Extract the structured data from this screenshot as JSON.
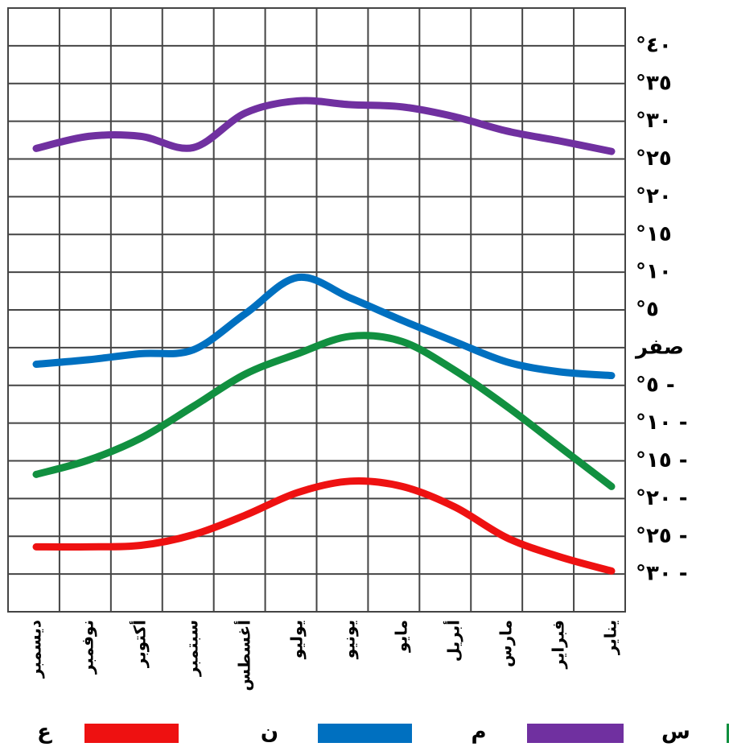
{
  "chart_data": {
    "type": "line",
    "categories": [
      "يناير",
      "فبراير",
      "مارس",
      "أبريل",
      "مايو",
      "يونيو",
      "يوليو",
      "أغسطس",
      "سبتمبر",
      "أكتوبر",
      "نوفمبر",
      "ديسمبر"
    ],
    "series": [
      {
        "name": "م",
        "color": "#7030a0",
        "values": [
          26,
          27.4,
          28.7,
          30.6,
          31.9,
          32.2,
          32.7,
          31.1,
          26.5,
          28,
          28,
          26.4
        ]
      },
      {
        "name": "ن",
        "color": "#0070c0",
        "values": [
          -3.7,
          -3.2,
          -1.9,
          0.8,
          3.6,
          6.6,
          9.3,
          4.5,
          -0.3,
          -0.8,
          -1.6,
          -2.2
        ]
      },
      {
        "name": "س",
        "color": "#119040",
        "values": [
          -18.4,
          -13.1,
          -7.8,
          -3,
          0.8,
          1.5,
          -0.8,
          -3.5,
          -7.8,
          -12,
          -14.9,
          -16.8
        ]
      },
      {
        "name": "ع",
        "color": "#ee1111",
        "values": [
          -29.6,
          -27.7,
          -25.2,
          -21.1,
          -18.4,
          -17.7,
          -19.2,
          -22.2,
          -24.8,
          -26.2,
          -26.4,
          -26.4
        ]
      }
    ],
    "ylim": [
      -35,
      45
    ],
    "yticks": [
      {
        "value": 40,
        "label": "°٤٠"
      },
      {
        "value": 35,
        "label": "°٣٥"
      },
      {
        "value": 30,
        "label": "°٣٠"
      },
      {
        "value": 25,
        "label": "°٢٥"
      },
      {
        "value": 20,
        "label": "°٢٠"
      },
      {
        "value": 15,
        "label": "°١٥"
      },
      {
        "value": 10,
        "label": "°١٠"
      },
      {
        "value": 5,
        "label": "°٥"
      },
      {
        "value": 0,
        "label": "صفر"
      },
      {
        "value": -5,
        "label": "°٥ -"
      },
      {
        "value": -10,
        "label": "°١٠ -"
      },
      {
        "value": -15,
        "label": "°١٥ -"
      },
      {
        "value": -20,
        "label": "°٢٠ -"
      },
      {
        "value": -25,
        "label": "°٢٥ -"
      },
      {
        "value": -30,
        "label": "°٣٠ -"
      }
    ],
    "grid": true
  }
}
